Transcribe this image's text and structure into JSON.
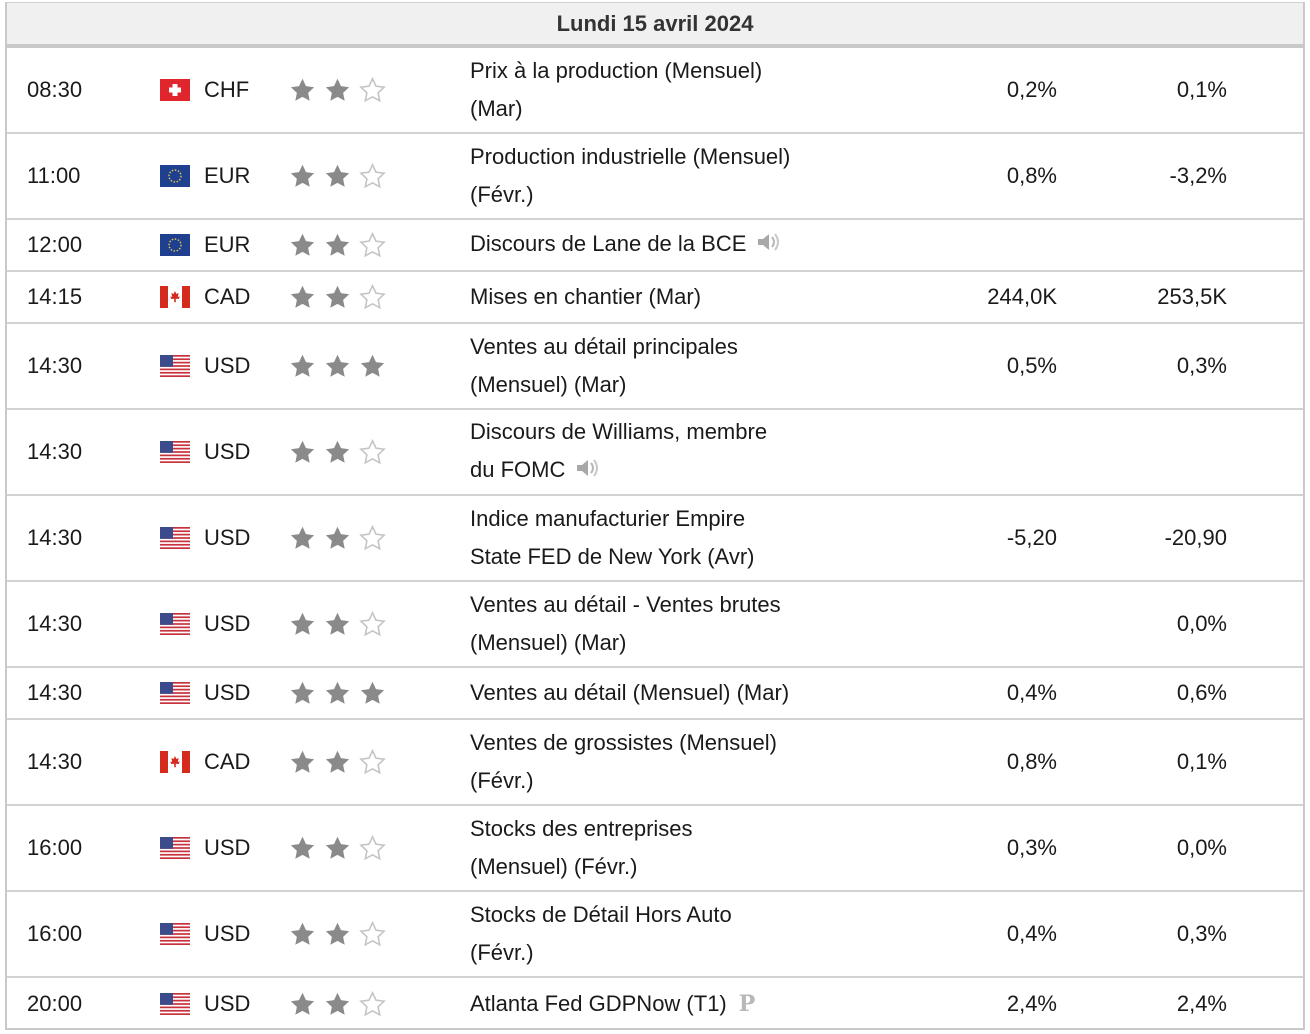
{
  "day_header": "Lundi 15 avril 2024",
  "events": [
    {
      "time": "08:30",
      "flag": "CH",
      "currency": "CHF",
      "importance": 2,
      "title_lines": [
        "Prix à la production (Mensuel)",
        "(Mar)"
      ],
      "extra": "",
      "actual": "0,2%",
      "previous": "0,1%"
    },
    {
      "time": "11:00",
      "flag": "EU",
      "currency": "EUR",
      "importance": 2,
      "title_lines": [
        "Production industrielle (Mensuel)",
        "(Févr.)"
      ],
      "extra": "",
      "actual": "0,8%",
      "previous": "-3,2%"
    },
    {
      "time": "12:00",
      "flag": "EU",
      "currency": "EUR",
      "importance": 2,
      "title_lines": [
        "Discours de Lane de la BCE"
      ],
      "extra": "speaker-icon",
      "actual": "",
      "previous": ""
    },
    {
      "time": "14:15",
      "flag": "CA",
      "currency": "CAD",
      "importance": 2,
      "title_lines": [
        "Mises en chantier (Mar)"
      ],
      "extra": "",
      "actual": "244,0K",
      "previous": "253,5K"
    },
    {
      "time": "14:30",
      "flag": "US",
      "currency": "USD",
      "importance": 3,
      "title_lines": [
        "Ventes au détail principales",
        "(Mensuel) (Mar)"
      ],
      "extra": "",
      "actual": "0,5%",
      "previous": "0,3%"
    },
    {
      "time": "14:30",
      "flag": "US",
      "currency": "USD",
      "importance": 2,
      "title_lines": [
        "Discours de Williams, membre",
        "du FOMC"
      ],
      "extra": "speaker-icon",
      "actual": "",
      "previous": ""
    },
    {
      "time": "14:30",
      "flag": "US",
      "currency": "USD",
      "importance": 2,
      "title_lines": [
        "Indice manufacturier Empire",
        "State FED de New York (Avr)"
      ],
      "extra": "",
      "actual": "-5,20",
      "previous": "-20,90"
    },
    {
      "time": "14:30",
      "flag": "US",
      "currency": "USD",
      "importance": 2,
      "title_lines": [
        "Ventes au détail - Ventes brutes",
        "(Mensuel) (Mar)"
      ],
      "extra": "",
      "actual": "",
      "previous": "0,0%"
    },
    {
      "time": "14:30",
      "flag": "US",
      "currency": "USD",
      "importance": 3,
      "title_lines": [
        "Ventes au détail (Mensuel) (Mar)"
      ],
      "extra": "",
      "actual": "0,4%",
      "previous": "0,6%"
    },
    {
      "time": "14:30",
      "flag": "CA",
      "currency": "CAD",
      "importance": 2,
      "title_lines": [
        "Ventes de grossistes (Mensuel)",
        "(Févr.)"
      ],
      "extra": "",
      "actual": "0,8%",
      "previous": "0,1%"
    },
    {
      "time": "16:00",
      "flag": "US",
      "currency": "USD",
      "importance": 2,
      "title_lines": [
        "Stocks des entreprises",
        "(Mensuel) (Févr.)"
      ],
      "extra": "",
      "actual": "0,3%",
      "previous": "0,0%"
    },
    {
      "time": "16:00",
      "flag": "US",
      "currency": "USD",
      "importance": 2,
      "title_lines": [
        "Stocks de Détail Hors Auto",
        "(Févr.)"
      ],
      "extra": "",
      "actual": "0,4%",
      "previous": "0,3%"
    },
    {
      "time": "20:00",
      "flag": "US",
      "currency": "USD",
      "importance": 2,
      "title_lines": [
        "Atlanta Fed GDPNow (T1)"
      ],
      "extra": "P",
      "actual": "2,4%",
      "previous": "2,4%"
    }
  ],
  "colors": {
    "star_on": "#8a8a8a",
    "star_off": "#c8c8c8",
    "border": "#d2d2d2",
    "header_bg": "#f0f0f0"
  }
}
